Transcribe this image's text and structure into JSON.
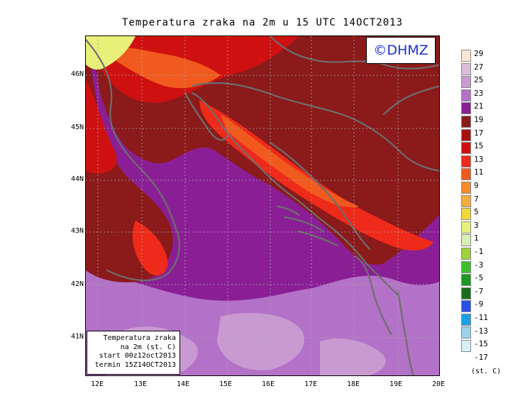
{
  "title": "Temperatura zraka na 2m u 15 UTC 14OCT2013",
  "watermark": "©DHMZ",
  "info": {
    "line1": "Temperatura zraka",
    "line2": "na 2m (st. C)",
    "line3": "start 00z12oct2013",
    "line4": "termin 15Z14OCT2013"
  },
  "axes": {
    "lat": [
      "46N",
      "45N",
      "44N",
      "43N",
      "42N",
      "41N"
    ],
    "lon": [
      "12E",
      "13E",
      "14E",
      "15E",
      "16E",
      "17E",
      "18E",
      "19E",
      "20E"
    ]
  },
  "colorbar": {
    "unit": "(st. C)",
    "labels": [
      "29",
      "27",
      "25",
      "23",
      "21",
      "19",
      "17",
      "15",
      "13",
      "11",
      "9",
      "7",
      "5",
      "3",
      "1",
      "-1",
      "-3",
      "-5",
      "-7",
      "-9",
      "-11",
      "-13",
      "-15",
      "-17"
    ],
    "colors": [
      "#fbe4d2",
      "#dcbcd6",
      "#c99ad2",
      "#b372c8",
      "#8a1f95",
      "#8b1a1a",
      "#a80f0f",
      "#cf1010",
      "#ee2a1a",
      "#f05a1e",
      "#f58a2a",
      "#f4ac3a",
      "#f0d83a",
      "#e8f07a",
      "#d8f0b4",
      "#9cd23a",
      "#3cbf2c",
      "#1a9a22",
      "#176f1b",
      "#2a4ee8",
      "#1aa0e8",
      "#9ad2ea",
      "#d6f0f6",
      "#ffffff"
    ]
  },
  "palette": {
    "purple": "#8a1f95",
    "light_purple": "#b372c8",
    "lilac": "#c99ad2",
    "dark_red": "#8b1a1a",
    "red": "#cf1010",
    "bright_red": "#ee2a1a",
    "orange": "#f05a1e",
    "yellow_green": "#e8f07a",
    "coast": "#6e6e6e"
  }
}
